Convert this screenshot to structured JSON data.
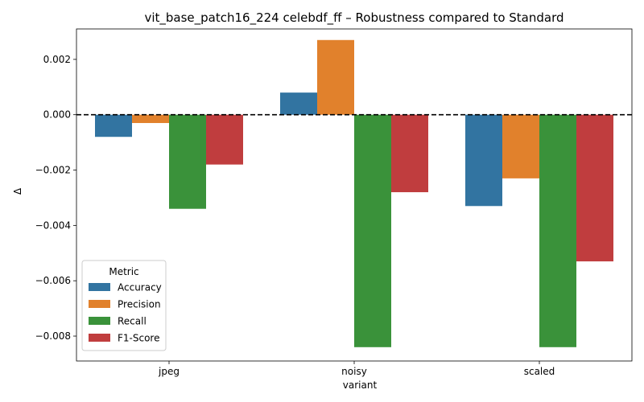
{
  "chart_data": {
    "type": "bar",
    "title": "vit_base_patch16_224 celebdf_ff – Robustness compared to Standard",
    "xlabel": "variant",
    "ylabel": "Δ",
    "categories": [
      "jpeg",
      "noisy",
      "scaled"
    ],
    "ylim": [
      -0.0089,
      0.0031
    ],
    "yticks": [
      0.002,
      0.0,
      -0.002,
      -0.004,
      -0.006,
      -0.008
    ],
    "ytick_labels": [
      "0.002",
      "0.000",
      "−0.002",
      "−0.004",
      "−0.006",
      "−0.008"
    ],
    "reference_line": 0,
    "grid": false,
    "legend": {
      "title": "Metric",
      "position": "lower-left"
    },
    "series": [
      {
        "name": "Accuracy",
        "color": "#3274a1",
        "values": [
          -0.0008,
          0.0008,
          -0.0033
        ]
      },
      {
        "name": "Precision",
        "color": "#e1812c",
        "values": [
          -0.0003,
          0.0027,
          -0.0023
        ]
      },
      {
        "name": "Recall",
        "color": "#3a923a",
        "values": [
          -0.0034,
          -0.0084,
          -0.0084
        ]
      },
      {
        "name": "F1-Score",
        "color": "#c03d3e",
        "values": [
          -0.0018,
          -0.0028,
          -0.0053
        ]
      }
    ]
  }
}
